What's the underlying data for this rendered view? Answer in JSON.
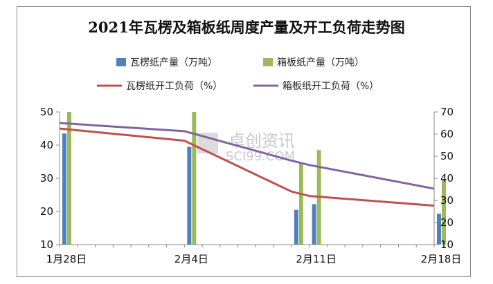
{
  "chart_data": {
    "type": "bar",
    "title": "2021年瓦楞及箱板纸周度产量及开工负荷走势图",
    "x": [
      "1月28日",
      "2月4日",
      "2月11日",
      "2月18日"
    ],
    "left_axis": {
      "ylim": [
        10,
        50
      ],
      "ticks": [
        10,
        20,
        30,
        40,
        50
      ]
    },
    "right_axis": {
      "ylim": [
        10,
        70
      ],
      "ticks": [
        10,
        20,
        30,
        40,
        50,
        60,
        70
      ]
    },
    "grid": false,
    "legend_position": "top",
    "bar_series": [
      {
        "name": "瓦楞纸产量（万吨）",
        "color": "#4f81bd",
        "points": [
          {
            "x": "1月28日",
            "offset_days": 0,
            "value": 43.5
          },
          {
            "x": "2月4日",
            "offset_days": 7,
            "value": 39.5
          },
          {
            "x": "2月11日",
            "offset_days": 13,
            "value": 20.5
          },
          {
            "x": "2月11日",
            "offset_days": 14,
            "value": 22.2
          },
          {
            "x": "2月18日",
            "offset_days": 21,
            "value": 19.3
          }
        ]
      },
      {
        "name": "箱板纸产量（万吨）",
        "color": "#9bbb59",
        "points": [
          {
            "x": "1月28日",
            "offset_days": 0,
            "value": 50
          },
          {
            "x": "2月4日",
            "offset_days": 7,
            "value": 50
          },
          {
            "x": "2月11日",
            "offset_days": 13,
            "value": 34.8
          },
          {
            "x": "2月11日",
            "offset_days": 14,
            "value": 38.5
          },
          {
            "x": "2月18日",
            "offset_days": 21,
            "value": 29.8
          }
        ]
      }
    ],
    "line_series": [
      {
        "name": "瓦楞纸开工负荷（%）",
        "color": "#c0504d",
        "axis": "right",
        "points": [
          {
            "offset_days": 0,
            "value": 62.5
          },
          {
            "offset_days": 7,
            "value": 57
          },
          {
            "offset_days": 13,
            "value": 34
          },
          {
            "offset_days": 14,
            "value": 32
          },
          {
            "offset_days": 21,
            "value": 27.6
          }
        ]
      },
      {
        "name": "箱板纸开工负荷（%）",
        "color": "#8064a2",
        "axis": "right",
        "points": [
          {
            "offset_days": 0,
            "value": 65
          },
          {
            "offset_days": 7,
            "value": 61.3
          },
          {
            "offset_days": 13,
            "value": 48
          },
          {
            "offset_days": 14,
            "value": 46
          },
          {
            "offset_days": 21,
            "value": 35.3
          }
        ]
      }
    ]
  },
  "watermark": {
    "line1": "卓创资讯",
    "line2": "SCI99.COM"
  }
}
